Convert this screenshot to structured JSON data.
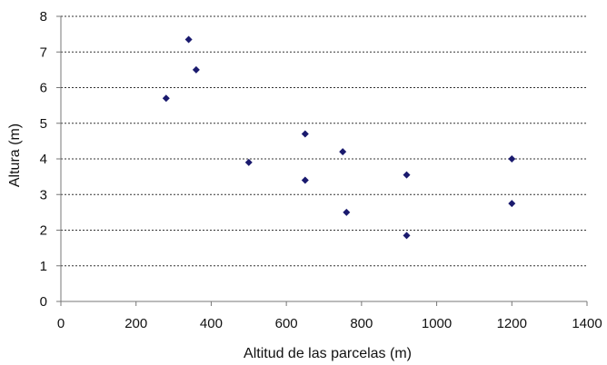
{
  "chart_data": {
    "type": "scatter",
    "title": "",
    "xlabel": "Altitud de las parcelas (m)",
    "ylabel": "Altura (m)",
    "xlim": [
      0,
      1400
    ],
    "ylim": [
      0,
      8
    ],
    "x_ticks": [
      0,
      200,
      400,
      600,
      800,
      1000,
      1200,
      1400
    ],
    "y_ticks": [
      0,
      1,
      2,
      3,
      4,
      5,
      6,
      7,
      8
    ],
    "grid": "horizontal-dashed",
    "marker": "diamond",
    "marker_color": "#1a1a6e",
    "points": [
      {
        "x": 340,
        "y": 7.35
      },
      {
        "x": 360,
        "y": 6.5
      },
      {
        "x": 280,
        "y": 5.7
      },
      {
        "x": 650,
        "y": 4.7
      },
      {
        "x": 750,
        "y": 4.2
      },
      {
        "x": 500,
        "y": 3.9
      },
      {
        "x": 650,
        "y": 3.4
      },
      {
        "x": 760,
        "y": 2.5
      },
      {
        "x": 920,
        "y": 3.55
      },
      {
        "x": 920,
        "y": 1.85
      },
      {
        "x": 1200,
        "y": 4.0
      },
      {
        "x": 1200,
        "y": 2.75
      }
    ]
  }
}
